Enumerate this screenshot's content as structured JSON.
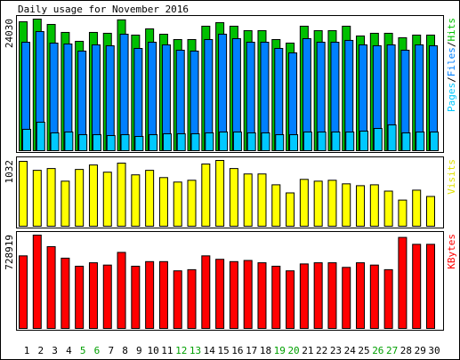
{
  "chart_data": {
    "type": "bar",
    "title": "Daily usage for November 2016",
    "categories": [
      "1",
      "2",
      "3",
      "4",
      "5",
      "6",
      "7",
      "8",
      "9",
      "10",
      "11",
      "12",
      "13",
      "14",
      "15",
      "16",
      "17",
      "18",
      "19",
      "20",
      "21",
      "22",
      "23",
      "24",
      "25",
      "26",
      "27",
      "28",
      "29",
      "30"
    ],
    "category_colors": [
      "#000000",
      "#000000",
      "#000000",
      "#000000",
      "#00a000",
      "#00a000",
      "#000000",
      "#000000",
      "#000000",
      "#000000",
      "#000000",
      "#00a000",
      "#00a000",
      "#000000",
      "#000000",
      "#000000",
      "#000000",
      "#000000",
      "#00a000",
      "#00a000",
      "#000000",
      "#000000",
      "#000000",
      "#000000",
      "#000000",
      "#00a000",
      "#00a000",
      "#000000",
      "#000000",
      "#000000"
    ],
    "legend_separator": "/",
    "panels": [
      {
        "ylim": [
          0,
          24030
        ],
        "yticks": [
          24030
        ],
        "series": [
          {
            "name": "Pages",
            "color": "#00c8ff",
            "values": [
              3900,
              5200,
              3250,
              3410,
              2920,
              2920,
              2760,
              2920,
              2600,
              2920,
              3085,
              3085,
              3085,
              3250,
              3410,
              3410,
              3250,
              3250,
              2920,
              2920,
              3410,
              3410,
              3410,
              3410,
              3570,
              4060,
              4710,
              3250,
              3410,
              3410
            ]
          },
          {
            "name": "Files",
            "color": "#0080ff",
            "values": [
              19810,
              21760,
              19650,
              19490,
              18190,
              19325,
              19165,
              21275,
              18675,
              19810,
              19325,
              18350,
              18190,
              20300,
              21275,
              20460,
              19810,
              19810,
              18675,
              17865,
              20460,
              19810,
              19810,
              20140,
              19325,
              19165,
              19325,
              18350,
              19325,
              19165
            ]
          },
          {
            "name": "Hits",
            "color": "#00c000",
            "values": [
              23550,
              24030,
              23060,
              21600,
              19975,
              21600,
              21440,
              23900,
              21110,
              22250,
              21270,
              20300,
              20300,
              22735,
              23385,
              22735,
              21925,
              21925,
              20300,
              19650,
              22735,
              21925,
              21925,
              22735,
              20950,
              21440,
              21440,
              20625,
              21110,
              21110
            ]
          }
        ]
      },
      {
        "ylim": [
          0,
          1032
        ],
        "yticks": [
          1032
        ],
        "series": [
          {
            "name": "Visits",
            "color": "#ffff00",
            "values": [
              1018,
              877,
              905,
              707,
              891,
              961,
              848,
              990,
              806,
              877,
              763,
              693,
              721,
              976,
              1032,
              905,
              820,
              820,
              650,
              523,
              735,
              707,
              721,
              665,
              636,
              650,
              551,
              410,
              566,
              467
            ]
          }
        ]
      },
      {
        "ylim": [
          0,
          728919
        ],
        "yticks": [
          728919
        ],
        "series": [
          {
            "name": "KBytes",
            "color": "#ff0000",
            "values": [
              567000,
              728919,
              639000,
              549000,
              486000,
              513000,
              495000,
              594000,
              486000,
              522000,
              522000,
              450000,
              459000,
              567000,
              540000,
              522000,
              531000,
              513000,
              486000,
              450000,
              504000,
              513000,
              513000,
              477000,
              513000,
              495000,
              459000,
              711000,
              657000,
              657000
            ]
          }
        ]
      }
    ]
  }
}
